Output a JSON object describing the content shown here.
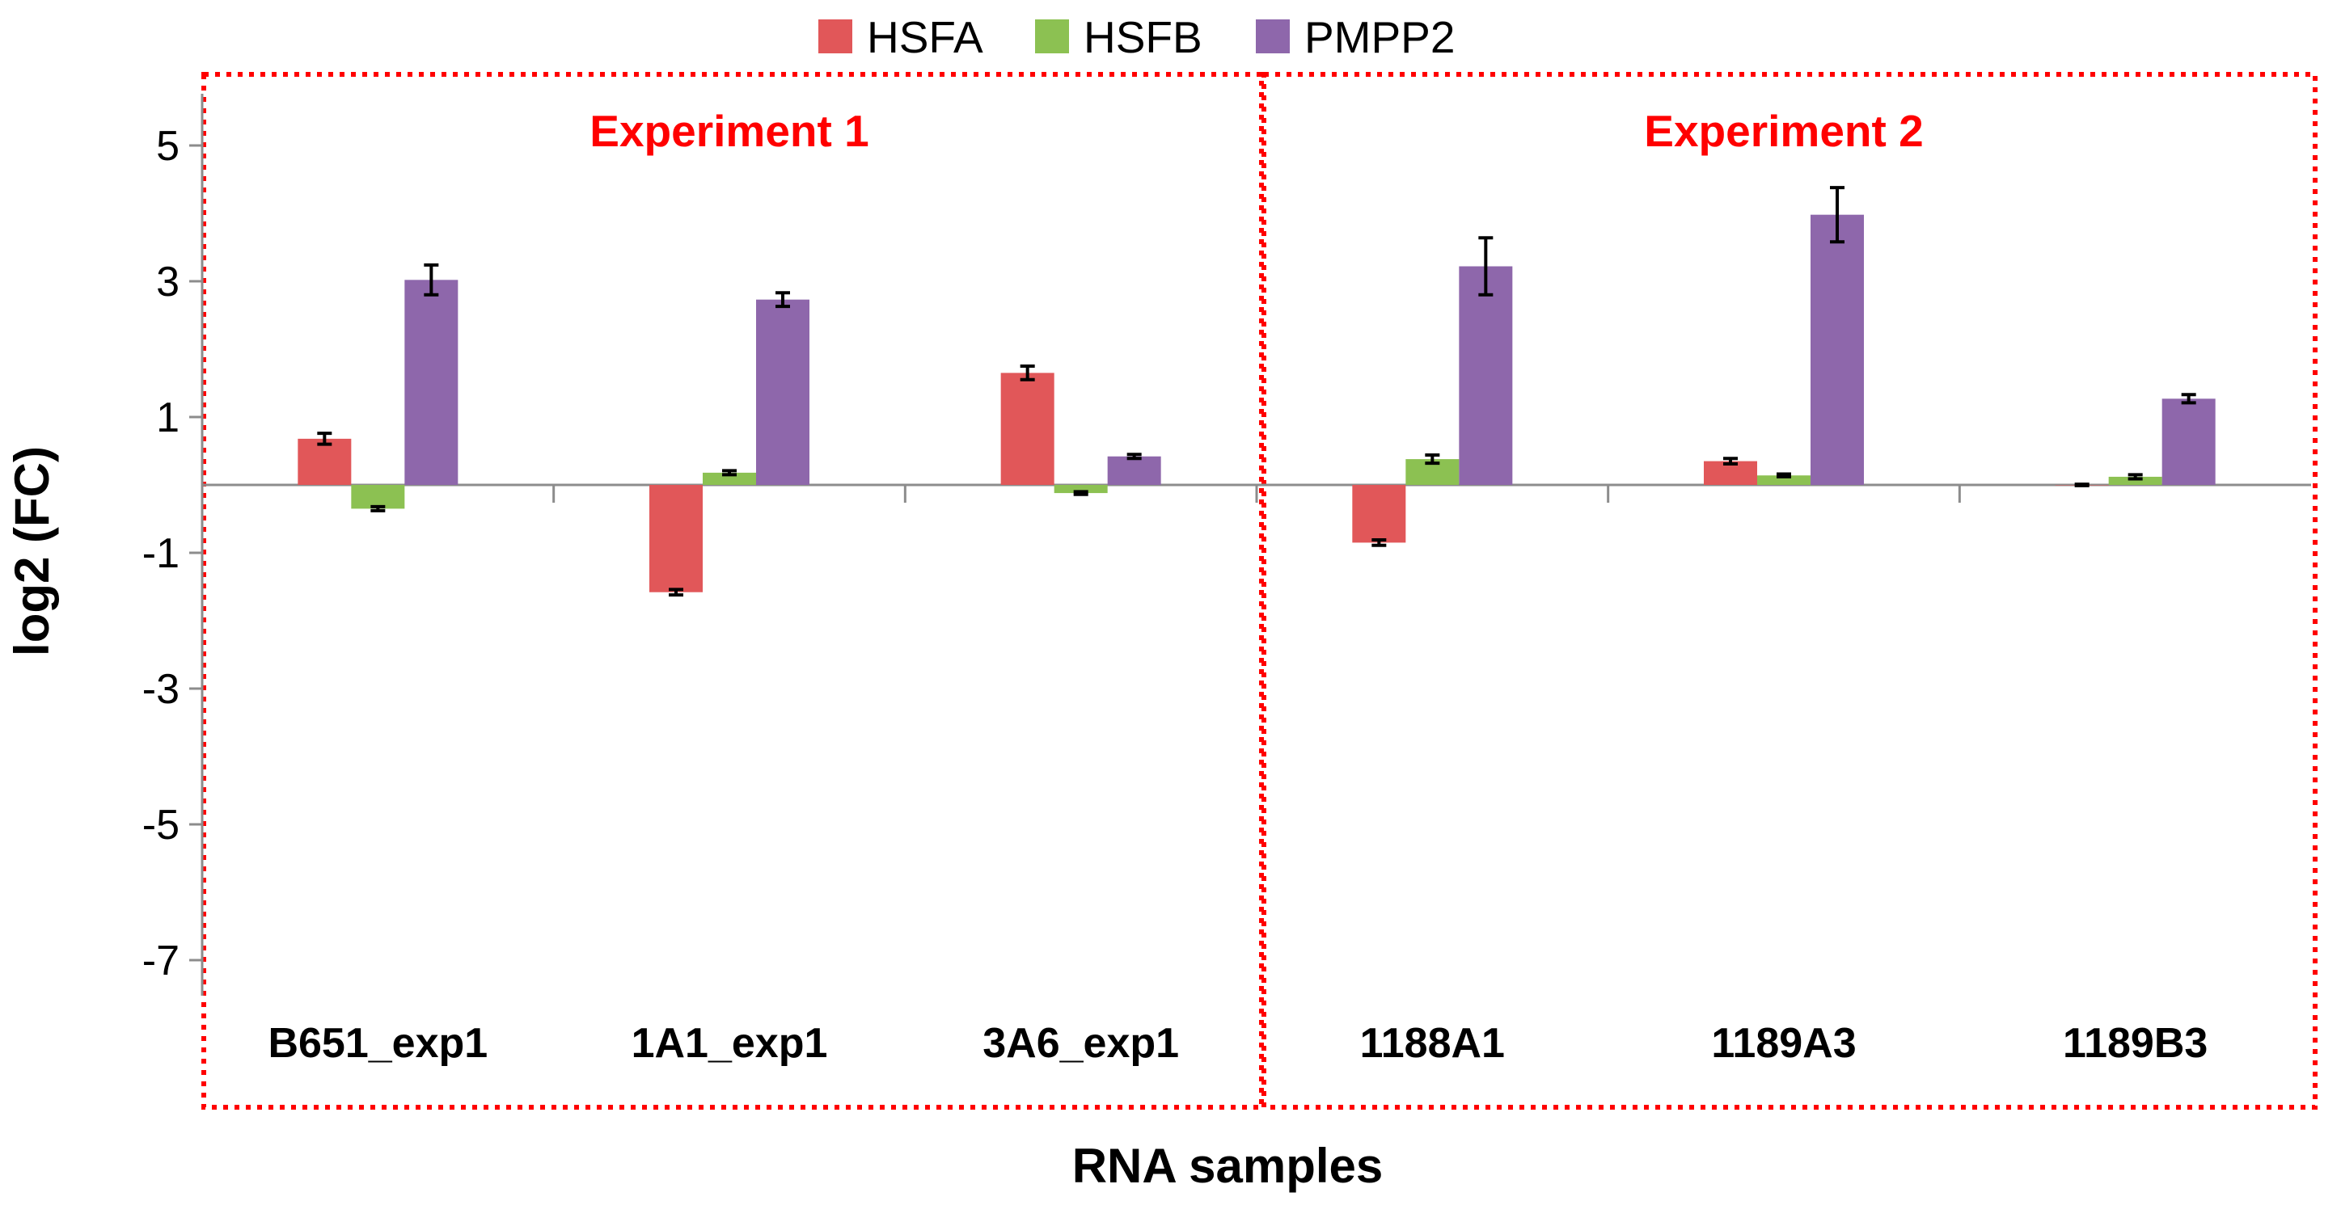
{
  "chart_data": {
    "type": "bar",
    "title": "",
    "xlabel": "RNA samples",
    "ylabel": "log2 (FC)",
    "ylim": [
      -8,
      6
    ],
    "yticks": [
      5,
      3,
      1,
      -1,
      -3,
      -5,
      -7
    ],
    "categories": [
      "B651_exp1",
      "1A1_exp1",
      "3A6_exp1",
      "1188A1",
      "1189A3",
      "1189B3"
    ],
    "series": [
      {
        "name": "HSFA",
        "color": "#E15759",
        "values": [
          0.68,
          -1.58,
          1.65,
          -0.85,
          0.35,
          0.0
        ],
        "errors": [
          0.08,
          0.04,
          0.1,
          0.04,
          0.04,
          0.01
        ]
      },
      {
        "name": "HSFB",
        "color": "#8CC152",
        "values": [
          -0.35,
          0.18,
          -0.12,
          0.38,
          0.14,
          0.12
        ],
        "errors": [
          0.03,
          0.03,
          0.02,
          0.06,
          0.02,
          0.03
        ]
      },
      {
        "name": "PMPP2",
        "color": "#8E67AB",
        "values": [
          3.02,
          2.73,
          0.42,
          3.22,
          3.98,
          1.27
        ],
        "errors": [
          0.22,
          0.1,
          0.03,
          0.42,
          0.4,
          0.06
        ]
      }
    ],
    "groups": [
      {
        "label": "Experiment 1",
        "categories": [
          "B651_exp1",
          "1A1_exp1",
          "3A6_exp1"
        ]
      },
      {
        "label": "Experiment 2",
        "categories": [
          "1188A1",
          "1189A3",
          "1189B3"
        ]
      }
    ],
    "legend_position": "top",
    "group_color": "#FF0000",
    "grid": false
  }
}
